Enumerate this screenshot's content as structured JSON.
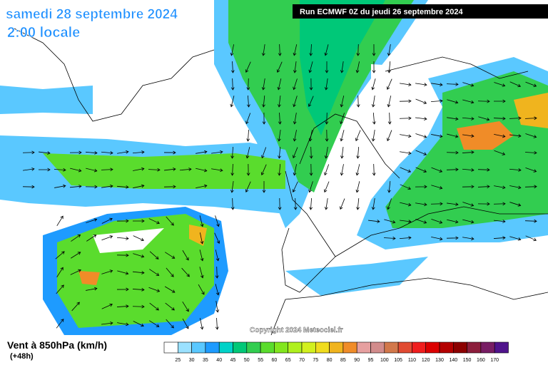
{
  "header": {
    "title": "samedi 28 septembre 2024",
    "time": "2:00 locale",
    "run": "Run ECMWF 0Z du jeudi 26 septembre 2024"
  },
  "copyright": "Copyright 2024 Meteociel.fr",
  "footer": {
    "variable": "Vent à 850hPa (km/h)",
    "lead": "(+48h)"
  },
  "legend": {
    "colors": [
      "#ffffff",
      "#9be1ff",
      "#5ac8ff",
      "#1e9bff",
      "#00d2c8",
      "#00c878",
      "#32cd50",
      "#5adc2d",
      "#82e61e",
      "#aff01e",
      "#d2f01e",
      "#f0dc1e",
      "#f0b41e",
      "#f08c28",
      "#e6a0a0",
      "#d28c8c",
      "#d2784b",
      "#e14b32",
      "#f01e1e",
      "#dc0000",
      "#b40000",
      "#8c0000",
      "#8c1e3c",
      "#781e64",
      "#50148c"
    ],
    "ticks": [
      25,
      30,
      35,
      40,
      45,
      50,
      55,
      60,
      65,
      70,
      75,
      80,
      85,
      90,
      95,
      100,
      105,
      110,
      120,
      130,
      140,
      150,
      160,
      170
    ]
  }
}
